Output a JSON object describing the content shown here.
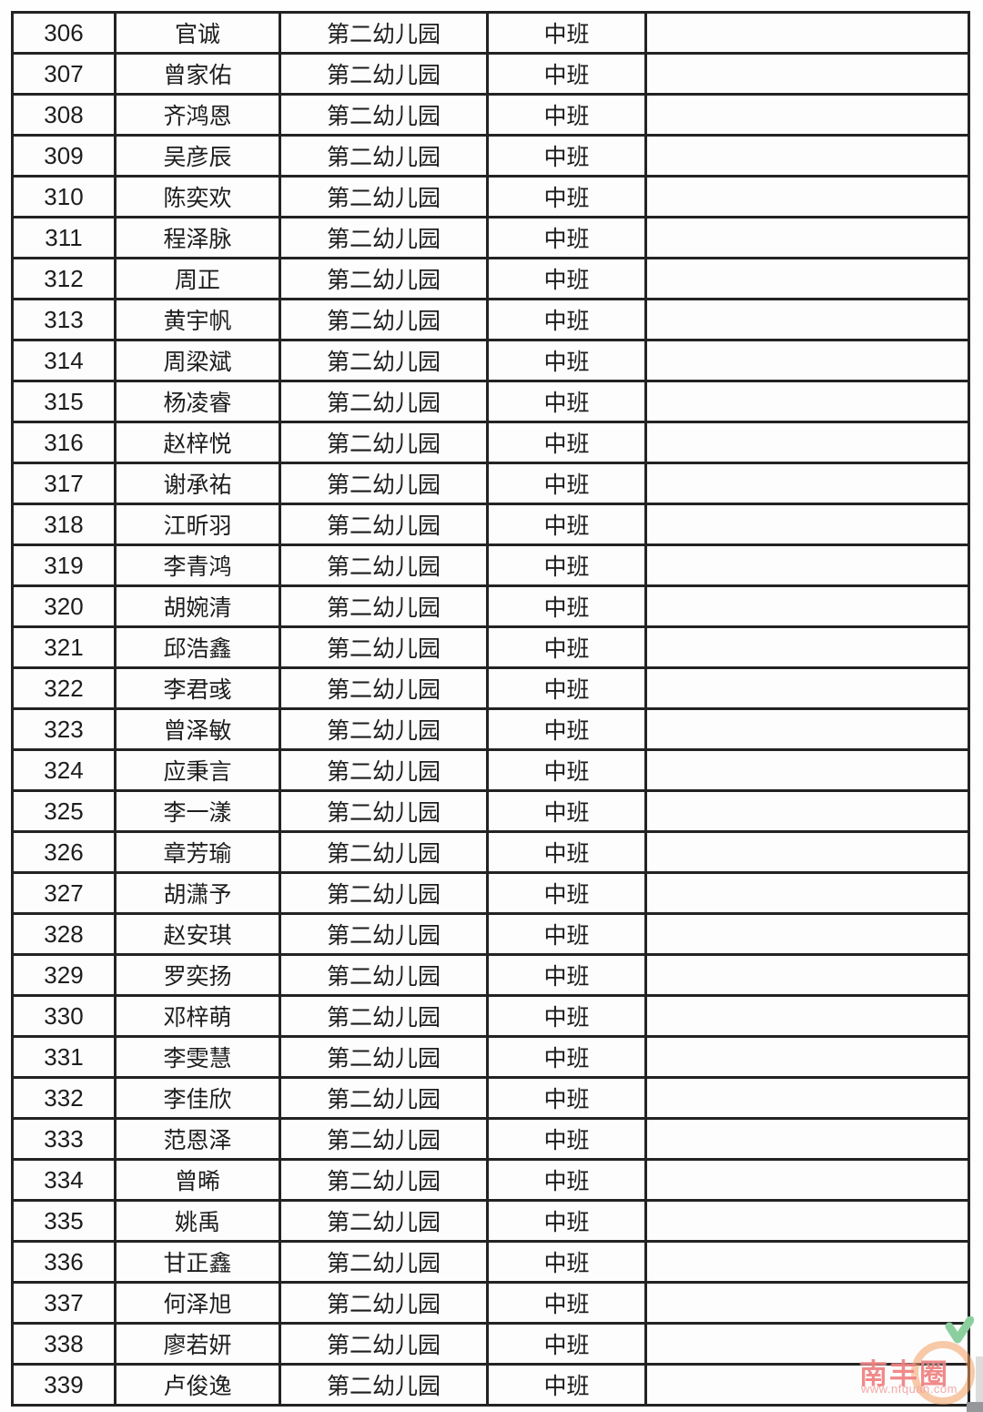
{
  "table": {
    "columns": [
      "number",
      "name",
      "school",
      "class",
      "remark"
    ],
    "rows": [
      {
        "number": "306",
        "name": "官诚",
        "school": "第二幼儿园",
        "class": "中班",
        "remark": ""
      },
      {
        "number": "307",
        "name": "曾家佑",
        "school": "第二幼儿园",
        "class": "中班",
        "remark": ""
      },
      {
        "number": "308",
        "name": "齐鸿恩",
        "school": "第二幼儿园",
        "class": "中班",
        "remark": ""
      },
      {
        "number": "309",
        "name": "吴彦辰",
        "school": "第二幼儿园",
        "class": "中班",
        "remark": ""
      },
      {
        "number": "310",
        "name": "陈奕欢",
        "school": "第二幼儿园",
        "class": "中班",
        "remark": ""
      },
      {
        "number": "311",
        "name": "程泽脉",
        "school": "第二幼儿园",
        "class": "中班",
        "remark": ""
      },
      {
        "number": "312",
        "name": "周正",
        "school": "第二幼儿园",
        "class": "中班",
        "remark": ""
      },
      {
        "number": "313",
        "name": "黄宇帆",
        "school": "第二幼儿园",
        "class": "中班",
        "remark": ""
      },
      {
        "number": "314",
        "name": "周梁斌",
        "school": "第二幼儿园",
        "class": "中班",
        "remark": ""
      },
      {
        "number": "315",
        "name": "杨凌睿",
        "school": "第二幼儿园",
        "class": "中班",
        "remark": ""
      },
      {
        "number": "316",
        "name": "赵梓悦",
        "school": "第二幼儿园",
        "class": "中班",
        "remark": ""
      },
      {
        "number": "317",
        "name": "谢承祐",
        "school": "第二幼儿园",
        "class": "中班",
        "remark": ""
      },
      {
        "number": "318",
        "name": "江昕羽",
        "school": "第二幼儿园",
        "class": "中班",
        "remark": ""
      },
      {
        "number": "319",
        "name": "李青鸿",
        "school": "第二幼儿园",
        "class": "中班",
        "remark": ""
      },
      {
        "number": "320",
        "name": "胡婉清",
        "school": "第二幼儿园",
        "class": "中班",
        "remark": ""
      },
      {
        "number": "321",
        "name": "邱浩鑫",
        "school": "第二幼儿园",
        "class": "中班",
        "remark": ""
      },
      {
        "number": "322",
        "name": "李君彧",
        "school": "第二幼儿园",
        "class": "中班",
        "remark": ""
      },
      {
        "number": "323",
        "name": "曾泽敏",
        "school": "第二幼儿园",
        "class": "中班",
        "remark": ""
      },
      {
        "number": "324",
        "name": "应秉言",
        "school": "第二幼儿园",
        "class": "中班",
        "remark": ""
      },
      {
        "number": "325",
        "name": "李一漾",
        "school": "第二幼儿园",
        "class": "中班",
        "remark": ""
      },
      {
        "number": "326",
        "name": "章芳瑜",
        "school": "第二幼儿园",
        "class": "中班",
        "remark": ""
      },
      {
        "number": "327",
        "name": "胡潇予",
        "school": "第二幼儿园",
        "class": "中班",
        "remark": ""
      },
      {
        "number": "328",
        "name": "赵安琪",
        "school": "第二幼儿园",
        "class": "中班",
        "remark": ""
      },
      {
        "number": "329",
        "name": "罗奕扬",
        "school": "第二幼儿园",
        "class": "中班",
        "remark": ""
      },
      {
        "number": "330",
        "name": "邓梓萌",
        "school": "第二幼儿园",
        "class": "中班",
        "remark": ""
      },
      {
        "number": "331",
        "name": "李雯慧",
        "school": "第二幼儿园",
        "class": "中班",
        "remark": ""
      },
      {
        "number": "332",
        "name": "李佳欣",
        "school": "第二幼儿园",
        "class": "中班",
        "remark": ""
      },
      {
        "number": "333",
        "name": "范恩泽",
        "school": "第二幼儿园",
        "class": "中班",
        "remark": ""
      },
      {
        "number": "334",
        "name": "曾晞",
        "school": "第二幼儿园",
        "class": "中班",
        "remark": ""
      },
      {
        "number": "335",
        "name": "姚禹",
        "school": "第二幼儿园",
        "class": "中班",
        "remark": ""
      },
      {
        "number": "336",
        "name": "甘正鑫",
        "school": "第二幼儿园",
        "class": "中班",
        "remark": ""
      },
      {
        "number": "337",
        "name": "何泽旭",
        "school": "第二幼儿园",
        "class": "中班",
        "remark": ""
      },
      {
        "number": "338",
        "name": "廖若妍",
        "school": "第二幼儿园",
        "class": "中班",
        "remark": ""
      },
      {
        "number": "339",
        "name": "卢俊逸",
        "school": "第二幼儿园",
        "class": "中班",
        "remark": ""
      }
    ]
  },
  "watermark": {
    "brand": "南丰圈",
    "url": "www.nfquan.com",
    "brand_color": "#ee7a7a",
    "url_color": "#f2a09e",
    "circle_color": "#f29e60",
    "leaf_color": "#8ccf9e"
  }
}
